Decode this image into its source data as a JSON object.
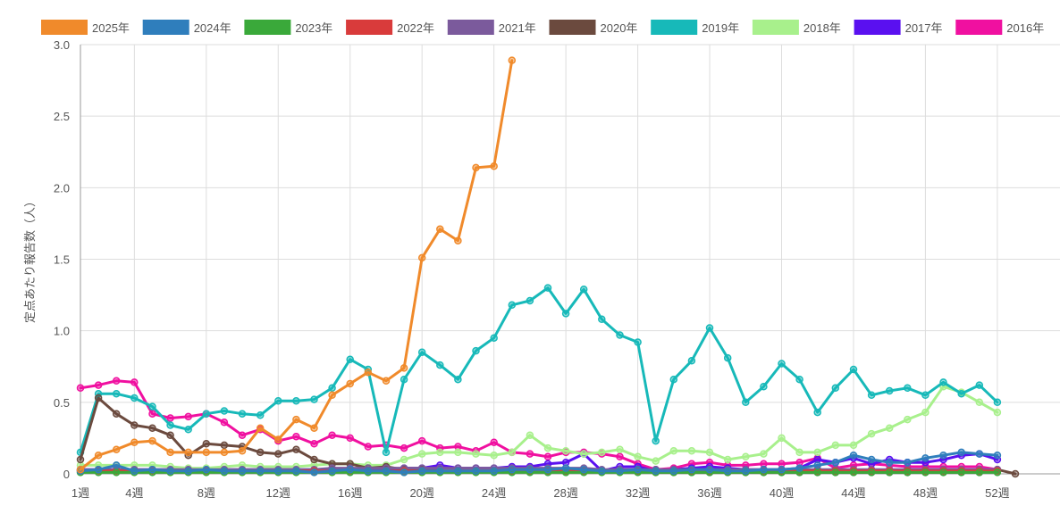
{
  "chart_data": {
    "type": "line",
    "ylabel": "定点あたり報告数（人）",
    "xlabel": "",
    "ylim": [
      0,
      3.0
    ],
    "xlim": [
      1,
      53
    ],
    "yticks": [
      "0",
      "0.5",
      "1.0",
      "1.5",
      "2.0",
      "2.5",
      "3.0"
    ],
    "xticks": [
      {
        "week": 1,
        "label": "1週"
      },
      {
        "week": 4,
        "label": "4週"
      },
      {
        "week": 8,
        "label": "8週"
      },
      {
        "week": 12,
        "label": "12週"
      },
      {
        "week": 16,
        "label": "16週"
      },
      {
        "week": 20,
        "label": "20週"
      },
      {
        "week": 24,
        "label": "24週"
      },
      {
        "week": 28,
        "label": "28週"
      },
      {
        "week": 32,
        "label": "32週"
      },
      {
        "week": 36,
        "label": "36週"
      },
      {
        "week": 40,
        "label": "40週"
      },
      {
        "week": 44,
        "label": "44週"
      },
      {
        "week": 48,
        "label": "48週"
      },
      {
        "week": 52,
        "label": "52週"
      }
    ],
    "grid": true,
    "legend_position": "top",
    "series": [
      {
        "name": "2025年",
        "color": "#f08a2b",
        "start": 1,
        "values": [
          0.03,
          0.13,
          0.17,
          0.22,
          0.23,
          0.15,
          0.15,
          0.15,
          0.15,
          0.16,
          0.32,
          0.24,
          0.38,
          0.32,
          0.55,
          0.63,
          0.71,
          0.65,
          0.74,
          1.51,
          1.71,
          1.63,
          2.14,
          2.15,
          2.89
        ]
      },
      {
        "name": "2024年",
        "color": "#2f7ebc",
        "start": 1,
        "values": [
          0.02,
          0.03,
          0.06,
          0.02,
          0.03,
          0.02,
          0.02,
          0.03,
          0.02,
          0.02,
          0.02,
          0.02,
          0.02,
          0.01,
          0.02,
          0.03,
          0.02,
          0.02,
          0.01,
          0.02,
          0.02,
          0.02,
          0.02,
          0.02,
          0.03,
          0.03,
          0.03,
          0.04,
          0.03,
          0.02,
          0.02,
          0.03,
          0.02,
          0.02,
          0.03,
          0.03,
          0.02,
          0.02,
          0.03,
          0.03,
          0.04,
          0.06,
          0.08,
          0.13,
          0.1,
          0.08,
          0.08,
          0.11,
          0.13,
          0.15,
          0.14,
          0.13
        ]
      },
      {
        "name": "2023年",
        "color": "#3aa93a",
        "start": 1,
        "values": [
          0.01,
          0.01,
          0.01,
          0.01,
          0.01,
          0.01,
          0.01,
          0.01,
          0.01,
          0.01,
          0.01,
          0.01,
          0.01,
          0.01,
          0.01,
          0.01,
          0.01,
          0.01,
          0.01,
          0.01,
          0.01,
          0.01,
          0.01,
          0.01,
          0.01,
          0.01,
          0.01,
          0.01,
          0.01,
          0.01,
          0.01,
          0.01,
          0.01,
          0.01,
          0.01,
          0.01,
          0.01,
          0.01,
          0.01,
          0.01,
          0.01,
          0.01,
          0.01,
          0.01,
          0.01,
          0.01,
          0.01,
          0.01,
          0.01,
          0.01,
          0.01,
          0.01
        ]
      },
      {
        "name": "2022年",
        "color": "#d93b3b",
        "start": 1,
        "values": [
          0.02,
          0.02,
          0.02,
          0.02,
          0.02,
          0.02,
          0.02,
          0.02,
          0.02,
          0.02,
          0.02,
          0.02,
          0.02,
          0.02,
          0.02,
          0.02,
          0.02,
          0.02,
          0.02,
          0.02,
          0.02,
          0.02,
          0.02,
          0.02,
          0.02,
          0.02,
          0.02,
          0.02,
          0.02,
          0.02,
          0.02,
          0.02,
          0.02,
          0.02,
          0.02,
          0.02,
          0.02,
          0.02,
          0.02,
          0.02,
          0.02,
          0.02,
          0.02,
          0.02,
          0.02,
          0.02,
          0.02,
          0.02,
          0.02,
          0.02,
          0.02,
          0.02
        ]
      },
      {
        "name": "2021年",
        "color": "#7b5a9c",
        "start": 1,
        "values": [
          0.03,
          0.03,
          0.03,
          0.03,
          0.03,
          0.03,
          0.03,
          0.03,
          0.03,
          0.03,
          0.03,
          0.03,
          0.03,
          0.03,
          0.04,
          0.04,
          0.04,
          0.04,
          0.04,
          0.04,
          0.04,
          0.04,
          0.04,
          0.04,
          0.04,
          0.04,
          0.04,
          0.04,
          0.04,
          0.03,
          0.03,
          0.03,
          0.03,
          0.03,
          0.03,
          0.03,
          0.03,
          0.03,
          0.03,
          0.03,
          0.03,
          0.03,
          0.03,
          0.03,
          0.03,
          0.03,
          0.03,
          0.03,
          0.03,
          0.03,
          0.03,
          0.03
        ]
      },
      {
        "name": "2020年",
        "color": "#6b4a3e",
        "start": 1,
        "values": [
          0.1,
          0.53,
          0.42,
          0.34,
          0.32,
          0.27,
          0.13,
          0.21,
          0.2,
          0.19,
          0.15,
          0.14,
          0.17,
          0.1,
          0.07,
          0.07,
          0.04,
          0.05,
          0.03,
          0.03,
          0.02,
          0.02,
          0.02,
          0.02,
          0.02,
          0.02,
          0.02,
          0.02,
          0.02,
          0.02,
          0.02,
          0.02,
          0.01,
          0.01,
          0.01,
          0.01,
          0.01,
          0.01,
          0.01,
          0.01,
          0.01,
          0.01,
          0.01,
          0.01,
          0.01,
          0.01,
          0.01,
          0.01,
          0.01,
          0.01,
          0.01,
          0.03,
          0.0
        ]
      },
      {
        "name": "2019年",
        "color": "#17b9b9",
        "start": 1,
        "values": [
          0.15,
          0.56,
          0.56,
          0.53,
          0.47,
          0.34,
          0.31,
          0.42,
          0.44,
          0.42,
          0.41,
          0.51,
          0.51,
          0.52,
          0.6,
          0.8,
          0.73,
          0.15,
          0.66,
          0.85,
          0.76,
          0.66,
          0.86,
          0.95,
          1.18,
          1.21,
          1.3,
          1.12,
          1.29,
          1.08,
          0.97,
          0.92,
          0.23,
          0.66,
          0.79,
          1.02,
          0.81,
          0.5,
          0.61,
          0.77,
          0.66,
          0.43,
          0.6,
          0.73,
          0.55,
          0.58,
          0.6,
          0.55,
          0.64,
          0.56,
          0.62,
          0.5
        ]
      },
      {
        "name": "2018年",
        "color": "#a8f08c",
        "start": 1,
        "values": [
          0.06,
          0.06,
          0.06,
          0.06,
          0.06,
          0.05,
          0.04,
          0.04,
          0.05,
          0.06,
          0.05,
          0.05,
          0.05,
          0.06,
          0.07,
          0.07,
          0.06,
          0.06,
          0.1,
          0.14,
          0.15,
          0.15,
          0.14,
          0.13,
          0.15,
          0.27,
          0.18,
          0.16,
          0.14,
          0.15,
          0.17,
          0.12,
          0.09,
          0.16,
          0.16,
          0.15,
          0.1,
          0.12,
          0.14,
          0.25,
          0.15,
          0.15,
          0.2,
          0.2,
          0.28,
          0.32,
          0.38,
          0.43,
          0.61,
          0.57,
          0.5,
          0.43
        ]
      },
      {
        "name": "2017年",
        "color": "#5a10f0",
        "start": 1,
        "values": [
          0.03,
          0.03,
          0.03,
          0.03,
          0.03,
          0.03,
          0.03,
          0.03,
          0.03,
          0.03,
          0.03,
          0.03,
          0.03,
          0.03,
          0.03,
          0.03,
          0.03,
          0.03,
          0.04,
          0.04,
          0.06,
          0.04,
          0.04,
          0.04,
          0.05,
          0.05,
          0.07,
          0.08,
          0.14,
          0.02,
          0.05,
          0.05,
          0.02,
          0.03,
          0.04,
          0.05,
          0.04,
          0.03,
          0.03,
          0.03,
          0.04,
          0.1,
          0.08,
          0.11,
          0.07,
          0.1,
          0.08,
          0.08,
          0.1,
          0.13,
          0.14,
          0.1
        ]
      },
      {
        "name": "2016年",
        "color": "#f010a0",
        "start": 1,
        "values": [
          0.6,
          0.62,
          0.65,
          0.64,
          0.42,
          0.39,
          0.4,
          0.42,
          0.36,
          0.27,
          0.31,
          0.23,
          0.26,
          0.21,
          0.27,
          0.25,
          0.19,
          0.2,
          0.18,
          0.23,
          0.18,
          0.19,
          0.16,
          0.22,
          0.15,
          0.14,
          0.12,
          0.15,
          0.15,
          0.14,
          0.12,
          0.07,
          0.03,
          0.04,
          0.07,
          0.08,
          0.06,
          0.06,
          0.07,
          0.07,
          0.08,
          0.11,
          0.04,
          0.06,
          0.07,
          0.06,
          0.05,
          0.05,
          0.05,
          0.05,
          0.05,
          0.03
        ]
      }
    ]
  }
}
